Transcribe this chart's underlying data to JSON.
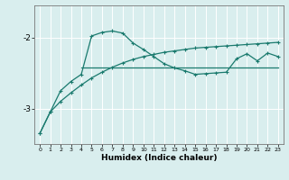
{
  "xlabel": "Humidex (Indice chaleur)",
  "x_ticks": [
    0,
    1,
    2,
    3,
    4,
    5,
    6,
    7,
    8,
    9,
    10,
    11,
    12,
    13,
    14,
    15,
    16,
    17,
    18,
    19,
    20,
    21,
    22,
    23
  ],
  "xlim": [
    -0.5,
    23.5
  ],
  "ylim": [
    -3.5,
    -1.55
  ],
  "y_ticks": [
    -3,
    -2
  ],
  "bg_color": "#d9eeee",
  "line_color": "#1a7a6e",
  "grid_color": "#ffffff",
  "series1_x": [
    0,
    1,
    2,
    3,
    4,
    5,
    6,
    7,
    8,
    9,
    10,
    11,
    12,
    13,
    14,
    15,
    16,
    17,
    18,
    19,
    20,
    21,
    22,
    23
  ],
  "series1_y": [
    -3.35,
    -3.05,
    -2.75,
    -2.62,
    -2.52,
    -1.98,
    -1.93,
    -1.91,
    -1.94,
    -2.08,
    -2.17,
    -2.27,
    -2.37,
    -2.43,
    -2.47,
    -2.52,
    -2.51,
    -2.5,
    -2.49,
    -2.3,
    -2.23,
    -2.33,
    -2.22,
    -2.27
  ],
  "series2_x": [
    4,
    23
  ],
  "series2_y": [
    -2.42,
    -2.42
  ],
  "series3_x": [
    0,
    1,
    2,
    3,
    4,
    5,
    6,
    7,
    8,
    9,
    10,
    11,
    12,
    13,
    14,
    15,
    16,
    17,
    18,
    19,
    20,
    21,
    22,
    23
  ],
  "series3_y": [
    -3.35,
    -3.05,
    -2.9,
    -2.78,
    -2.67,
    -2.57,
    -2.49,
    -2.42,
    -2.36,
    -2.31,
    -2.27,
    -2.24,
    -2.21,
    -2.19,
    -2.17,
    -2.15,
    -2.14,
    -2.13,
    -2.12,
    -2.11,
    -2.1,
    -2.09,
    -2.08,
    -2.07
  ]
}
